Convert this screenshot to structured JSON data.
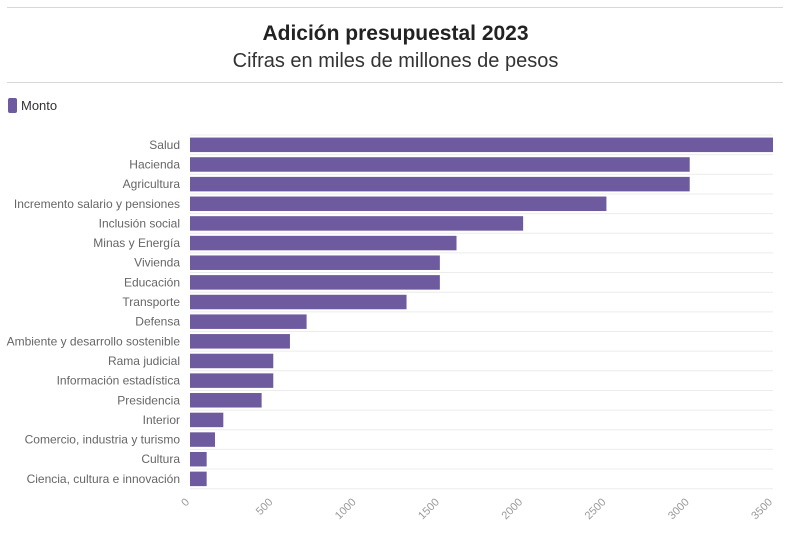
{
  "title": "Adición presupuestal 2023",
  "subtitle": "Cifras en miles de millones de pesos",
  "legend": {
    "label": "Monto",
    "color": "#6e5a9e"
  },
  "chart_data": {
    "type": "bar",
    "orientation": "horizontal",
    "categories": [
      "Salud",
      "Hacienda",
      "Agricultura",
      "Incremento salario y pensiones",
      "Inclusión social",
      "Minas y Energía",
      "Vivienda",
      "Educación",
      "Transporte",
      "Defensa",
      "Ambiente y desarrollo sostenible",
      "Rama judicial",
      "Información estadística",
      "Presidencia",
      "Interior",
      "Comercio, industria y turismo",
      "Cultura",
      "Ciencia, cultura e innovación"
    ],
    "series": [
      {
        "name": "Monto",
        "values": [
          3500,
          3000,
          3000,
          2500,
          2000,
          1600,
          1500,
          1500,
          1300,
          700,
          600,
          500,
          500,
          430,
          200,
          150,
          100,
          100
        ]
      }
    ],
    "xlim": [
      0,
      3500
    ],
    "xticks": [
      "0",
      "500",
      "1000",
      "1500",
      "2000",
      "2500",
      "3000",
      "3500"
    ],
    "grid": true,
    "legend_position": "top-left"
  }
}
